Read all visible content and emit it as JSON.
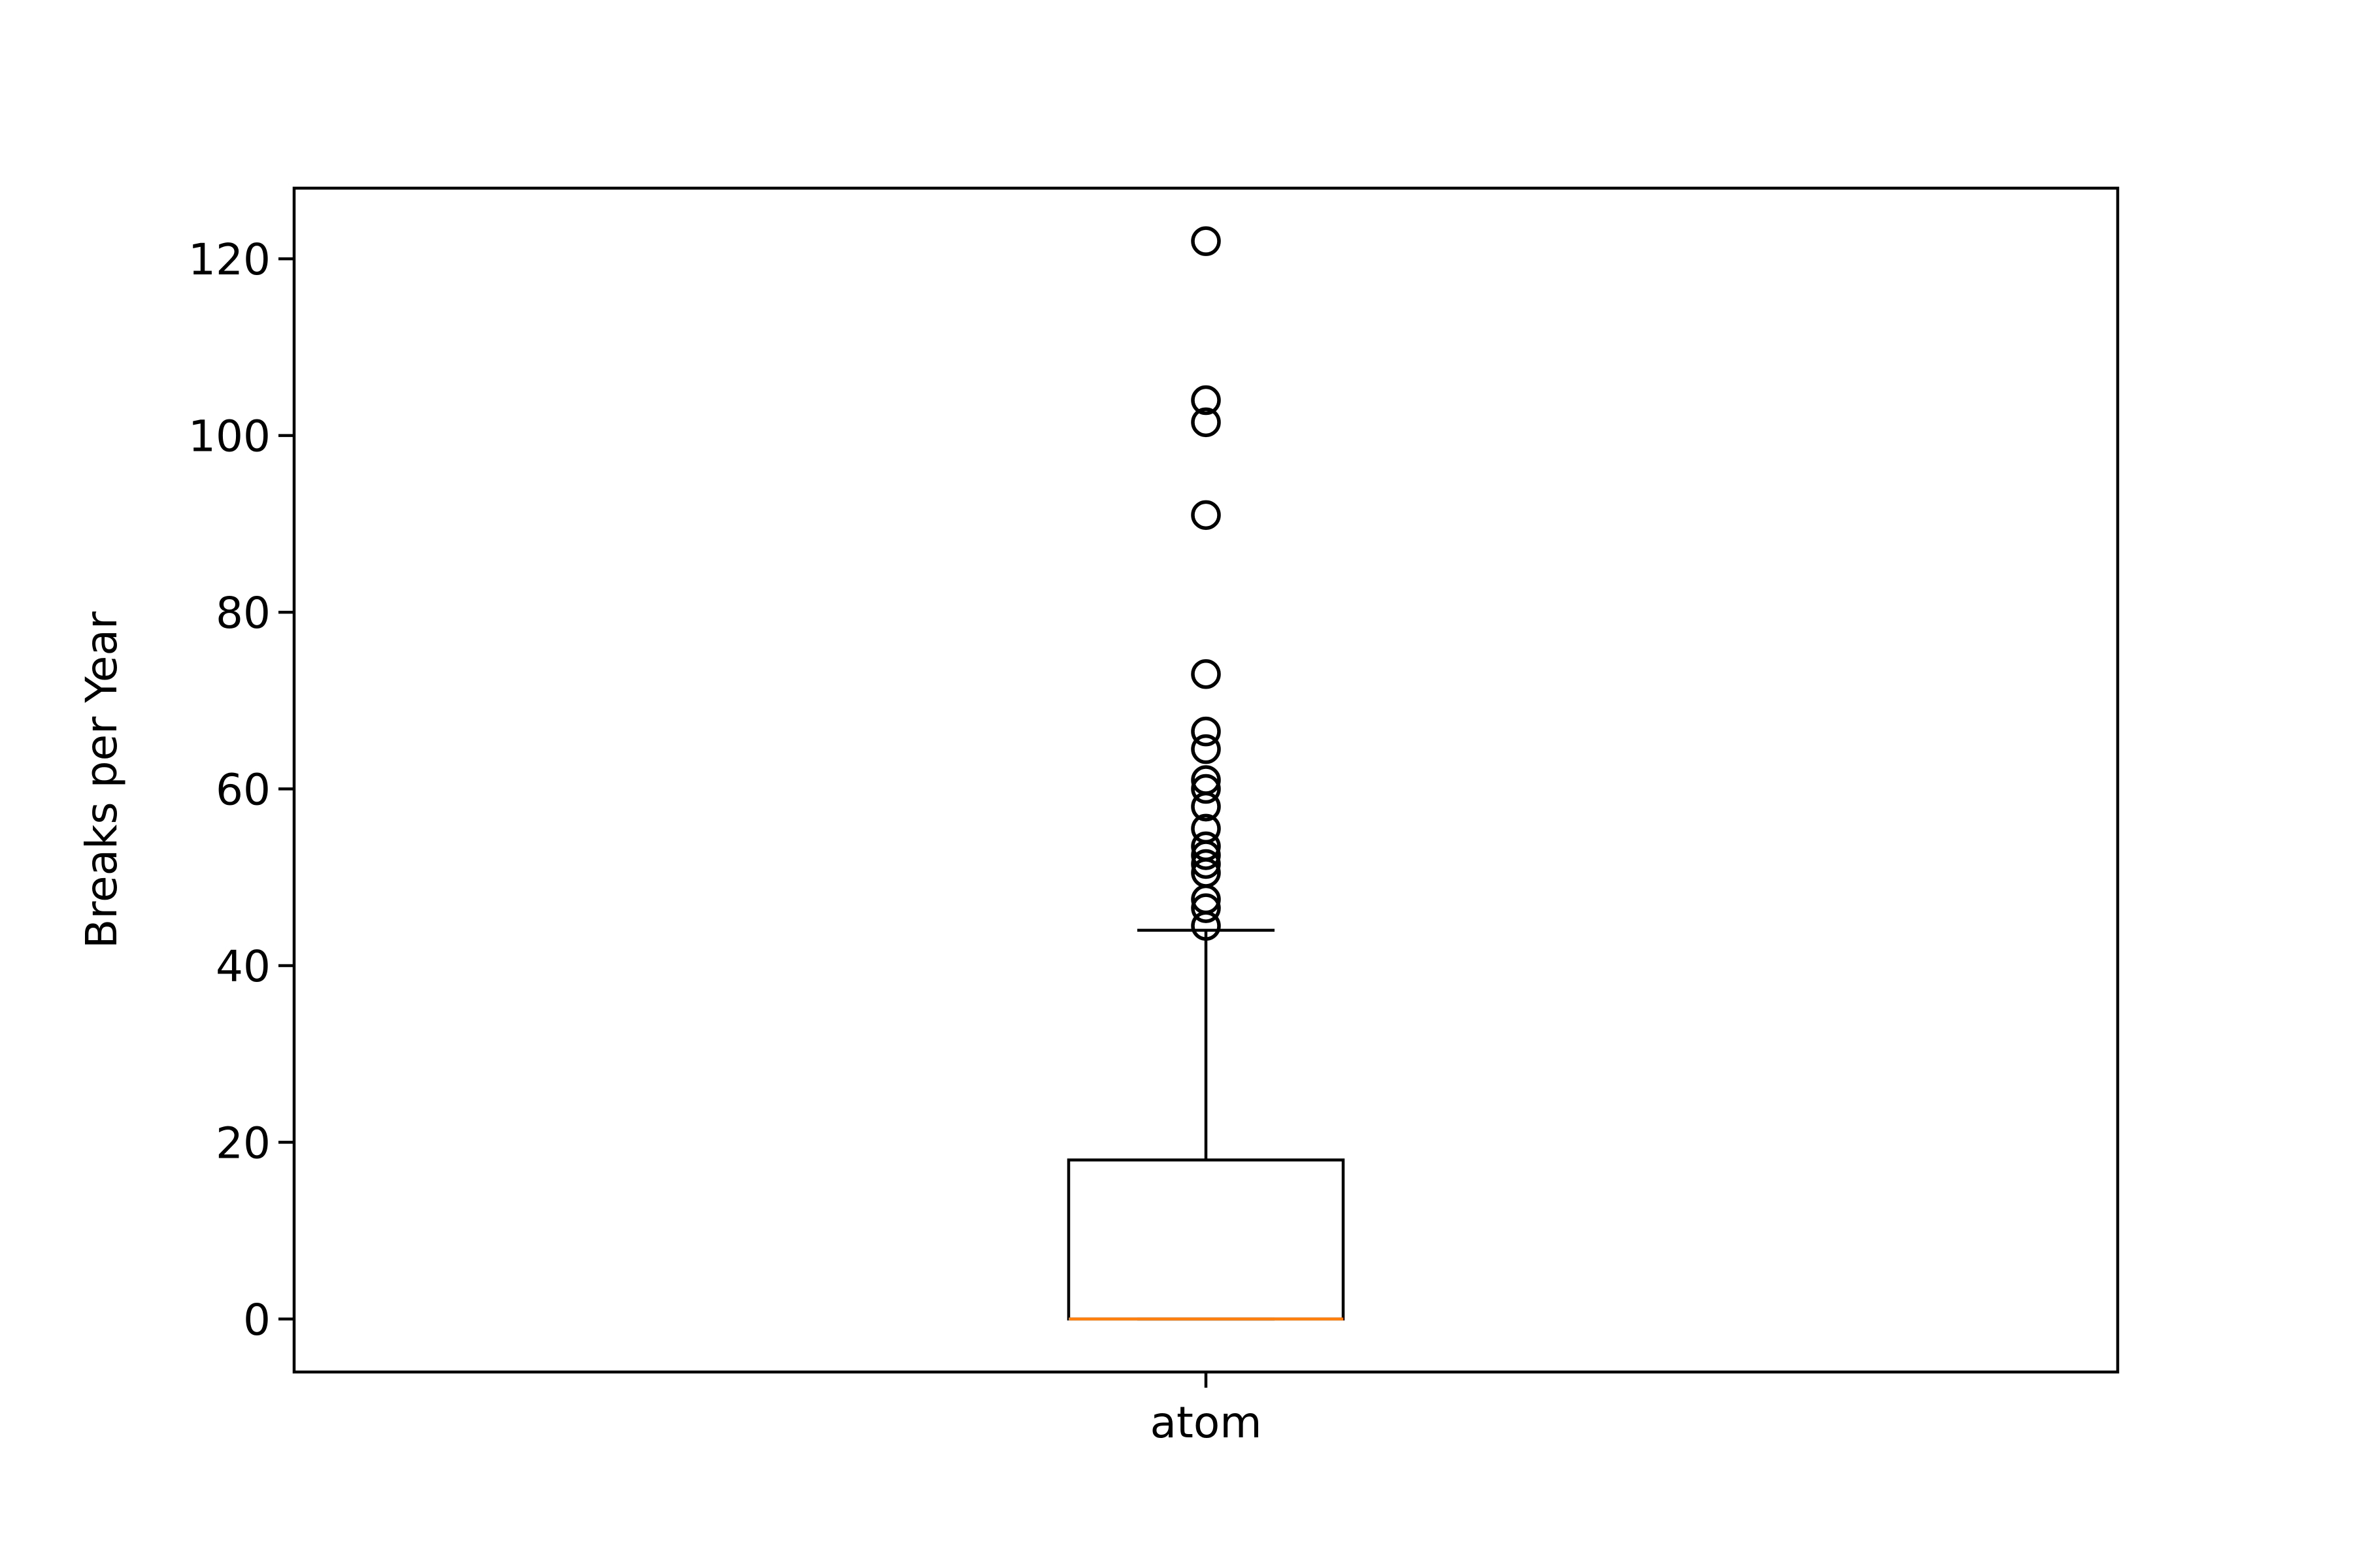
{
  "chart_data": {
    "type": "boxplot",
    "title": "",
    "xlabel": "",
    "ylabel": "Breaks per Year",
    "ylim": [
      -6,
      128
    ],
    "yticks": [
      0,
      20,
      40,
      60,
      80,
      100,
      120
    ],
    "grid": false,
    "legend": "none",
    "categories": [
      "atom"
    ],
    "boxes": [
      {
        "category": "atom",
        "whisker_low": 0,
        "q1": 0,
        "median": 0,
        "q3": 18,
        "whisker_high": 44,
        "outliers": [
          44.5,
          46.5,
          47.5,
          50.5,
          51.5,
          52.5,
          53.5,
          55.5,
          58,
          60,
          61,
          64.5,
          66.5,
          73,
          91,
          101.5,
          104,
          122
        ]
      }
    ],
    "colors": {
      "box": "#000000",
      "median": "#ff7f0e",
      "outlier": "#000000"
    }
  }
}
